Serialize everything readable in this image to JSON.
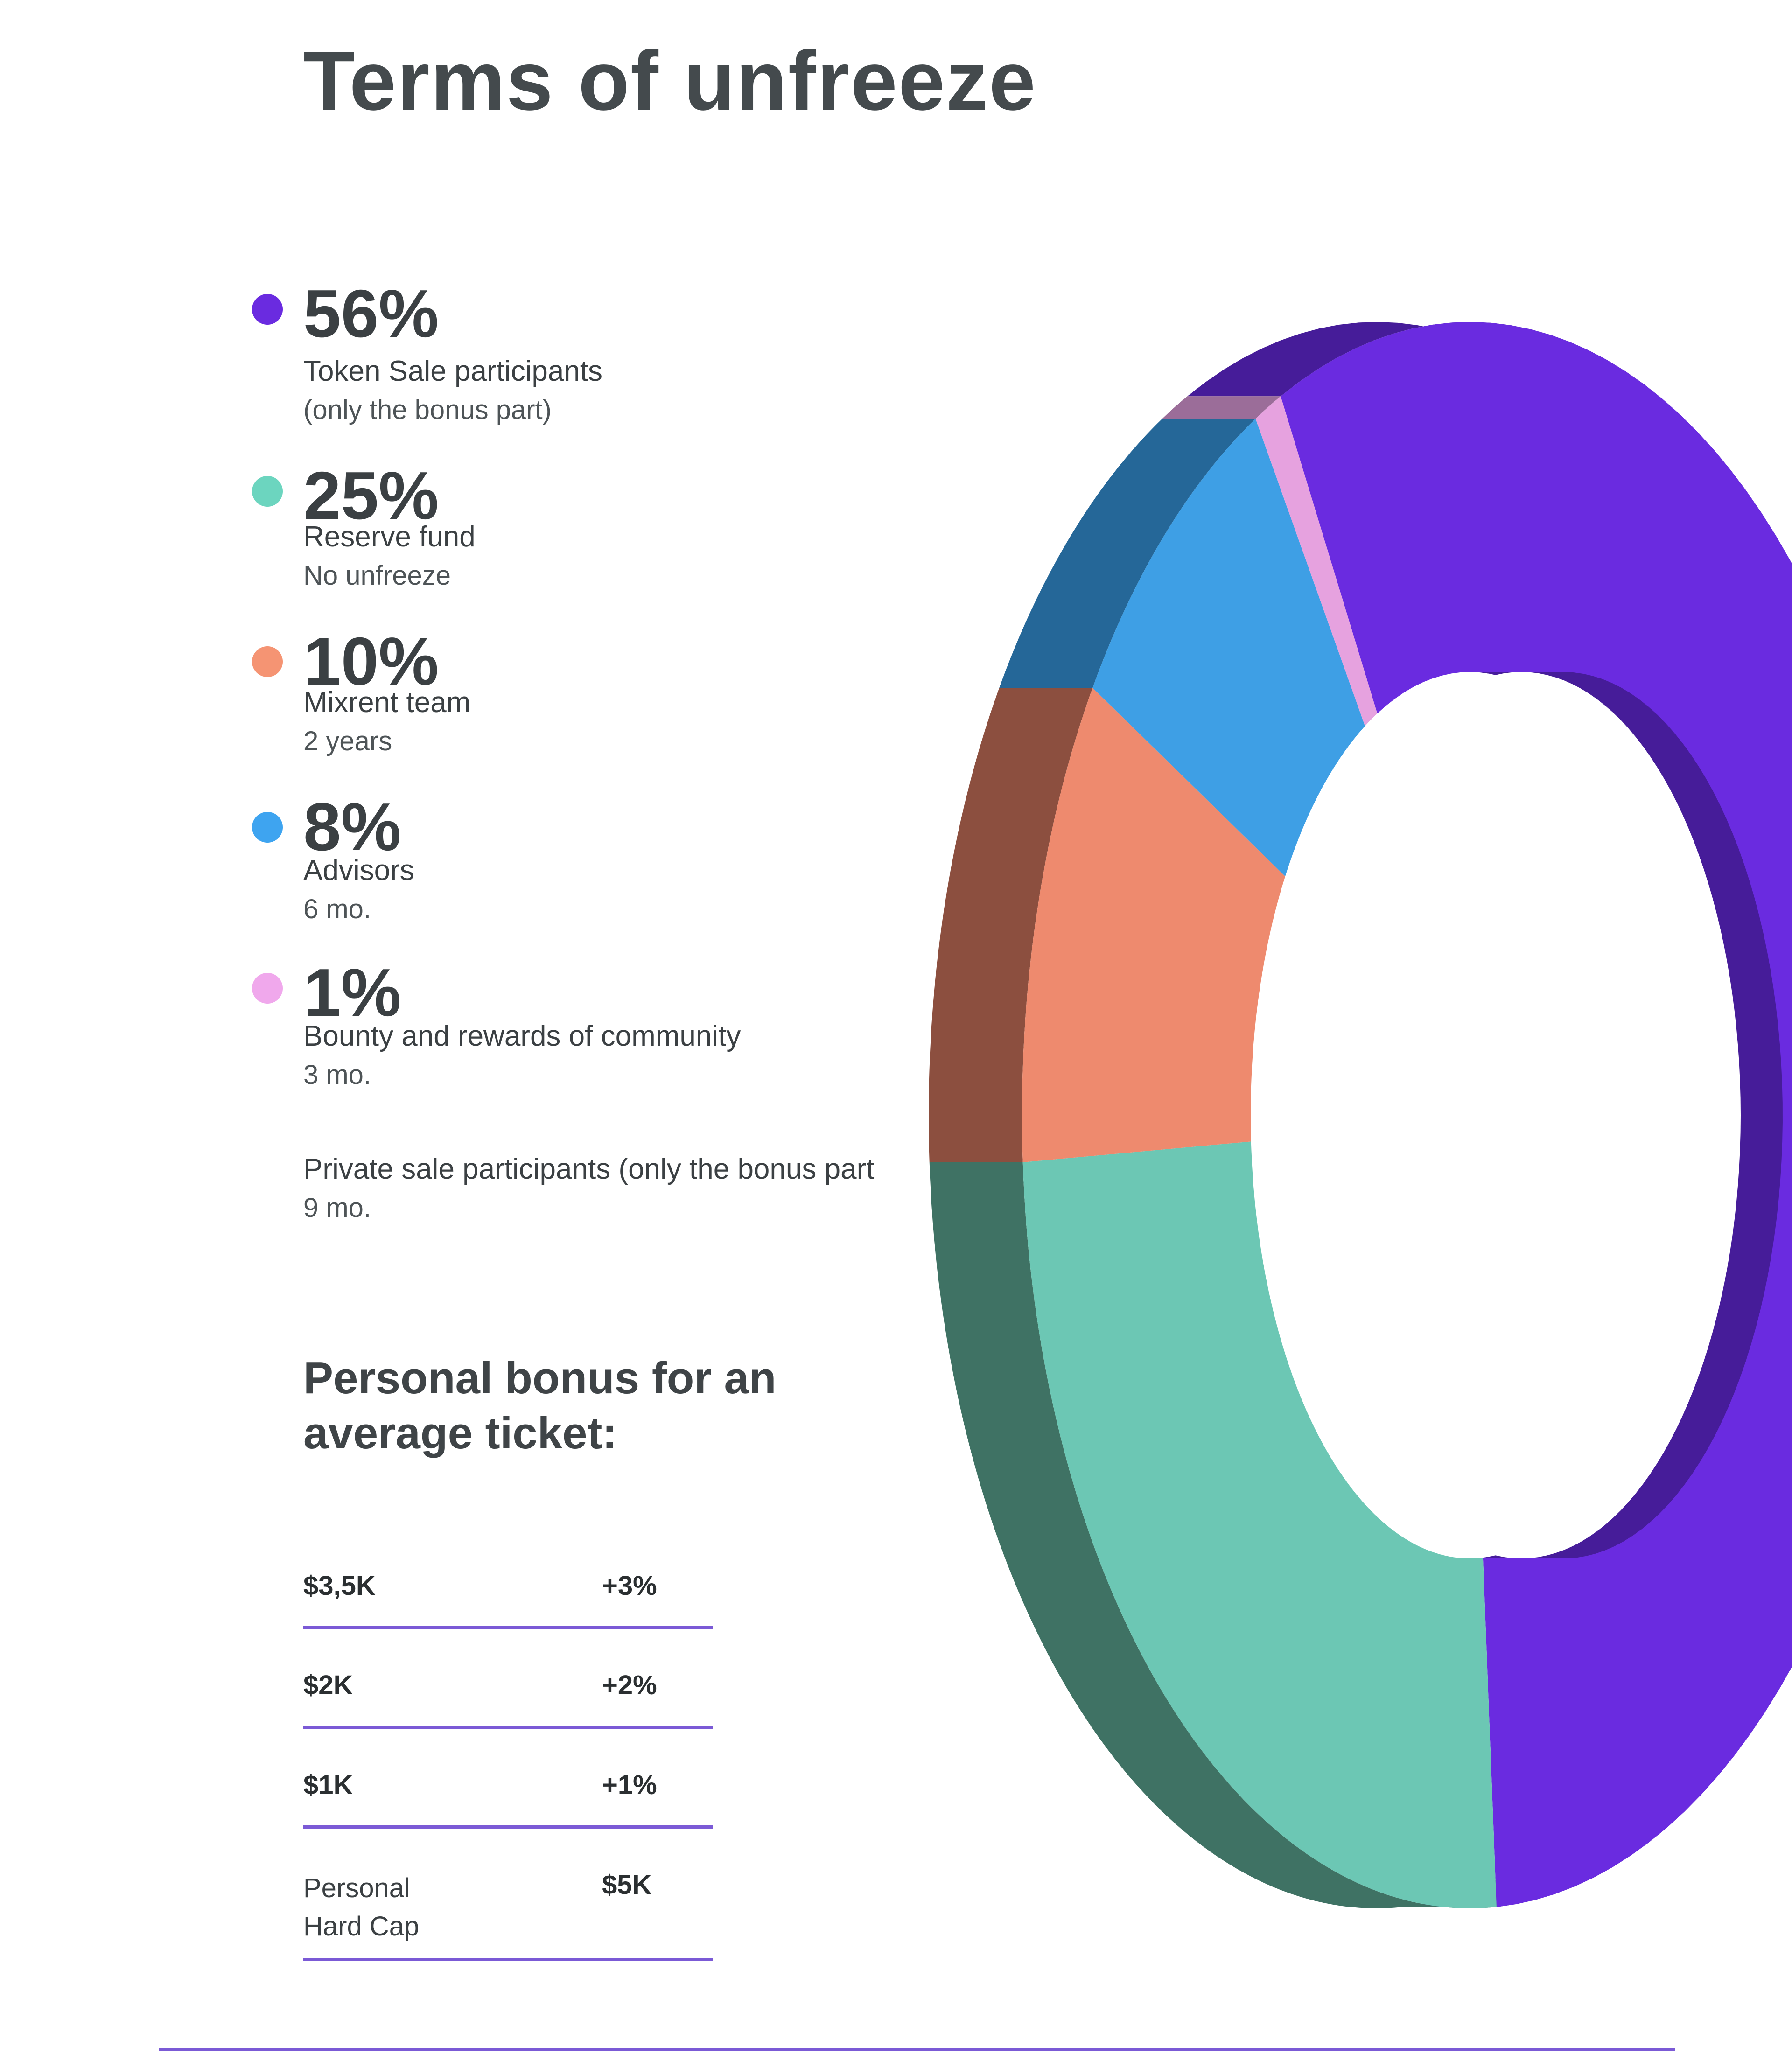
{
  "title": "Terms of unfreeze",
  "chart_data": {
    "type": "pie",
    "style": "3d-donut",
    "title": "Terms of unfreeze",
    "slices": [
      {
        "value": 56,
        "label": "56%",
        "name": "Token Sale participants",
        "note": "(only the bonus part)",
        "color": "#6a2be0",
        "side_color": "#461c99"
      },
      {
        "value": 25,
        "label": "25%",
        "name": "Reserve fund",
        "note": "No unfreeze",
        "color": "#6cc7b4",
        "side_color": "#3f7264"
      },
      {
        "value": 10,
        "label": "10%",
        "name": "Mixrent team",
        "note": "2 years",
        "color": "#ee8a6e",
        "side_color": "#8c4f3f"
      },
      {
        "value": 8,
        "label": "8%",
        "name": "Advisors",
        "note": "6 mo.",
        "color": "#3e9fe5",
        "side_color": "#256798"
      },
      {
        "value": 1,
        "label": "1%",
        "name": "Bounty and rewards of community",
        "note": "3 mo.",
        "color": "#e6a2df",
        "side_color": "#9b6d99"
      }
    ],
    "extra_entry": {
      "name": "Private sale participants (only the bonus part",
      "note": "9 mo."
    }
  },
  "bonus": {
    "title": "Personal bonus for an average ticket:",
    "rows": [
      {
        "key": "$3,5K",
        "value": "+3%"
      },
      {
        "key": "$2K",
        "value": "+2%"
      },
      {
        "key": "$1K",
        "value": "+1%"
      },
      {
        "key": "Personal\nHard Cap",
        "value": "$5K"
      }
    ]
  },
  "colors": {
    "accent": "#7b5ad6",
    "dot_token_sale": "#6a2be0",
    "dot_reserve": "#6cd5bf",
    "dot_team": "#f59473",
    "dot_advisors": "#3ea4f0",
    "dot_bounty": "#f0a8ec"
  }
}
